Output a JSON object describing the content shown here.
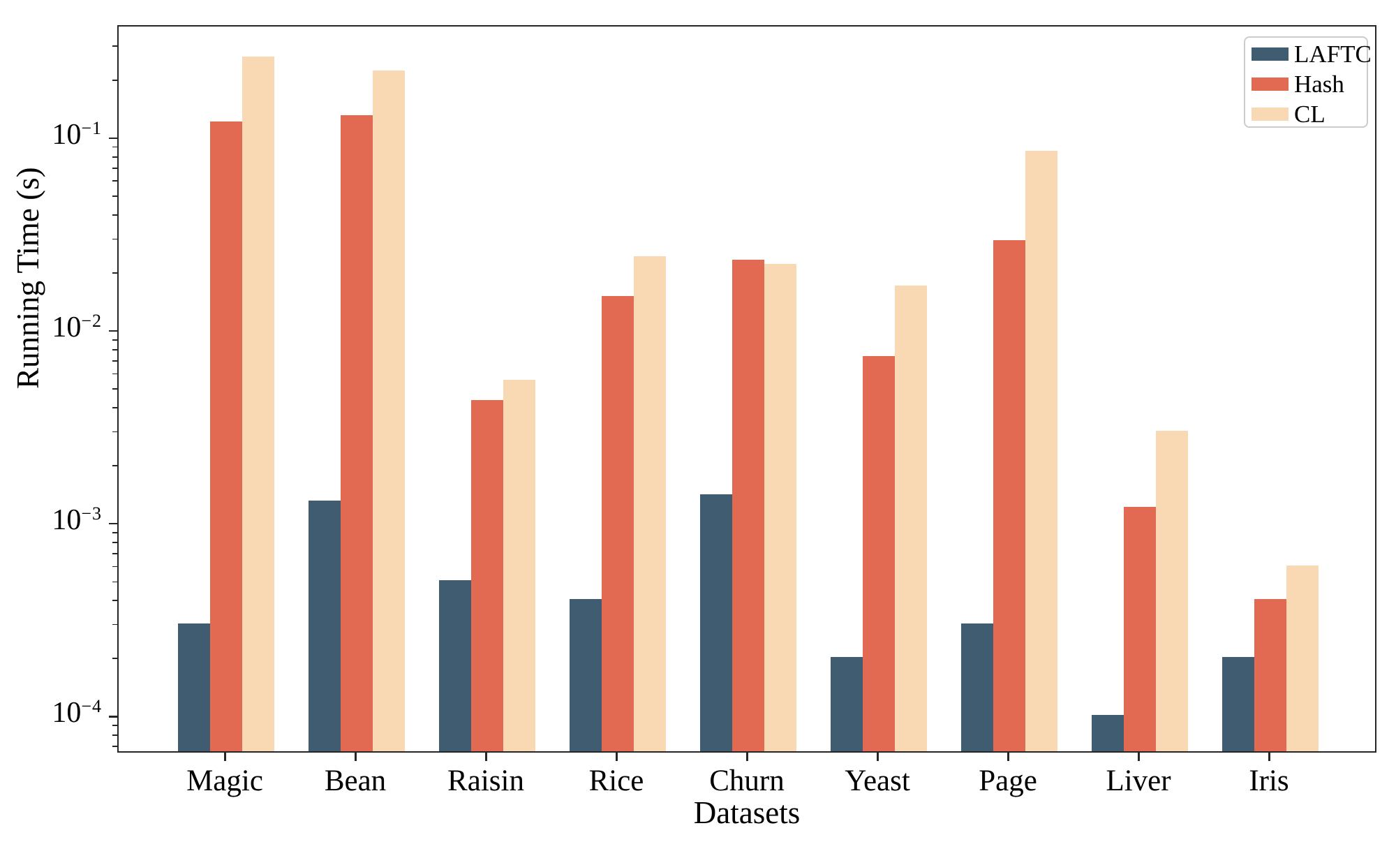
{
  "chart_data": {
    "type": "bar",
    "title": "",
    "xlabel": "Datasets",
    "ylabel": "Running Time (s)",
    "yscale": "log",
    "ylim": [
      6.5e-05,
      0.386
    ],
    "ytick_exponents": [
      -1,
      -2,
      -3,
      -4
    ],
    "grid": false,
    "legend_position": "upper right",
    "categories": [
      "Magic",
      "Bean",
      "Raisin",
      "Rice",
      "Churn",
      "Yeast",
      "Page",
      "Liver",
      "Iris"
    ],
    "series": [
      {
        "name": "LAFTC",
        "color": "#3f5c70",
        "values": [
          0.0003,
          0.0013,
          0.0005,
          0.0004,
          0.0014,
          0.0002,
          0.0003,
          0.0001,
          0.0002
        ]
      },
      {
        "name": "Hash",
        "color": "#e26952",
        "values": [
          0.12,
          0.13,
          0.0043,
          0.015,
          0.023,
          0.0073,
          0.029,
          0.0012,
          0.0004
        ]
      },
      {
        "name": "CL",
        "color": "#f8d9b4",
        "values": [
          0.26,
          0.22,
          0.0055,
          0.024,
          0.022,
          0.017,
          0.085,
          0.003,
          0.0006
        ]
      }
    ]
  },
  "frame_color": "#262626"
}
